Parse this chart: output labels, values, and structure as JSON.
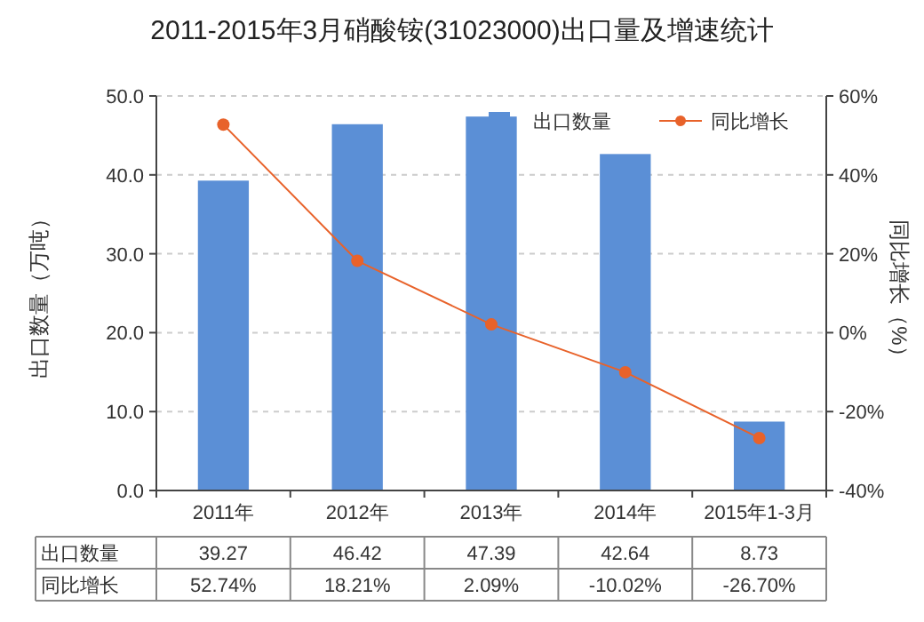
{
  "chart_data": {
    "type": "bar",
    "title": "2011-2015年3月硝酸铵(31023000)出口量及增速统计",
    "categories": [
      "2011年",
      "2012年",
      "2013年",
      "2014年",
      "2015年1-3月"
    ],
    "ylabel": "出口数量（万吨）",
    "y2label": "同比增长（%）",
    "series": [
      {
        "name": "出口数量",
        "color": "#5b8fd6",
        "values": [
          39.27,
          46.42,
          47.39,
          42.64,
          8.73
        ],
        "value_labels": [
          "39.27",
          "46.42",
          "47.39",
          "42.64",
          "8.73"
        ]
      },
      {
        "name": "同比增长",
        "type": "line",
        "axis": "y2",
        "color": "#e8622a",
        "values": [
          52.74,
          18.21,
          2.09,
          -10.02,
          -26.7
        ],
        "value_labels": [
          "52.74%",
          "18.21%",
          "2.09%",
          "-10.02%",
          "-26.70%"
        ]
      }
    ],
    "ylim": [
      0,
      50
    ],
    "yticks": [
      {
        "value": 0,
        "label": "0.0"
      },
      {
        "value": 10,
        "label": "10.0"
      },
      {
        "value": 20,
        "label": "20.0"
      },
      {
        "value": 30,
        "label": "30.0"
      },
      {
        "value": 40,
        "label": "40.0"
      },
      {
        "value": 50,
        "label": "50.0"
      }
    ],
    "y2lim": [
      -40,
      60
    ],
    "y2ticks": [
      {
        "value": -40,
        "label": "-40%"
      },
      {
        "value": -20,
        "label": "-20%"
      },
      {
        "value": 0,
        "label": "0%"
      },
      {
        "value": 20,
        "label": "20%"
      },
      {
        "value": 40,
        "label": "40%"
      },
      {
        "value": 60,
        "label": "60%"
      }
    ],
    "grid": "y",
    "legend": "top right",
    "marker": "circle",
    "line_style": "solid"
  }
}
